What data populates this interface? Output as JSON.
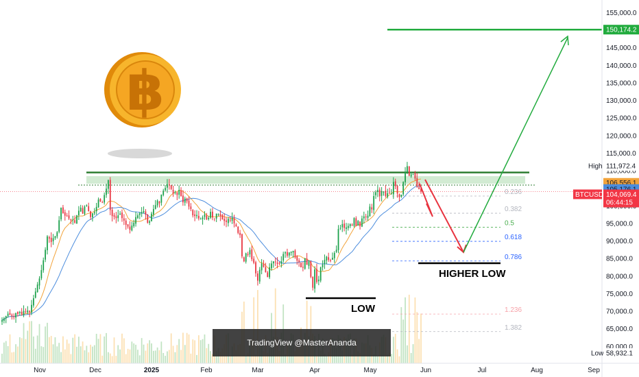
{
  "chart_data": {
    "type": "candlestick",
    "symbol": "BTCUSDT",
    "x_labels": [
      "Nov",
      "Dec",
      "2025",
      "Feb",
      "Mar",
      "Apr",
      "May",
      "Jun",
      "Jul",
      "Aug",
      "Sep"
    ],
    "y_ticks": [
      "155,000.0",
      "150,000.0",
      "145,000.0",
      "140,000.0",
      "135,000.0",
      "130,000.0",
      "125,000.0",
      "120,000.0",
      "115,000.0",
      "110,000.0",
      "105,000.0",
      "100,000.0",
      "95,000.0",
      "90,000.0",
      "85,000.0",
      "80,000.0",
      "75,000.0",
      "70,000.0",
      "65,000.0",
      "60,000.0"
    ],
    "y_tick_values": [
      155000,
      150000,
      145000,
      140000,
      135000,
      130000,
      125000,
      120000,
      115000,
      110000,
      105000,
      100000,
      95000,
      90000,
      85000,
      80000,
      75000,
      70000,
      65000,
      60000
    ],
    "ylim": [
      57000,
      158000
    ],
    "price_badges": {
      "target": {
        "label": "150,174.2",
        "value": 150174.2,
        "color": "#22ab3e"
      },
      "high": {
        "caption": "High",
        "label": "111,972.4",
        "value": 111972.4
      },
      "ma1": {
        "label": "106,556.1",
        "value": 106556.1,
        "color": "#f2a33a"
      },
      "ma2": {
        "label": "105,176.1",
        "value": 105176.1,
        "color": "#4c8ddd"
      },
      "symbol": {
        "label": "BTCUSDT",
        "color": "#f23645"
      },
      "last": {
        "label": "104,069.4",
        "value": 104069.4,
        "countdown": "06:44:15",
        "color": "#f23645"
      },
      "low": {
        "caption": "Low",
        "label": "58,932.1",
        "value": 58932.1
      }
    },
    "fib_levels": [
      {
        "label": "0.236",
        "value": 102800,
        "color": "#b2b5be"
      },
      {
        "label": "0.382",
        "value": 97900,
        "color": "#b2b5be"
      },
      {
        "label": "0.5",
        "value": 93900,
        "color": "#4caf50"
      },
      {
        "label": "0.618",
        "value": 89900,
        "color": "#2962ff"
      },
      {
        "label": "0.786",
        "value": 84300,
        "color": "#2962ff"
      },
      {
        "label": "1.236",
        "value": 69200,
        "color": "#f7a1a8"
      },
      {
        "label": "1.382",
        "value": 64200,
        "color": "#b2b5be"
      }
    ],
    "resistance_level": 109500,
    "annotations": {
      "low": "LOW",
      "higher_low": "HIGHER LOW"
    },
    "closes": [
      67500,
      68000,
      68600,
      69300,
      69000,
      68700,
      68400,
      69500,
      69200,
      69800,
      69200,
      70100,
      69900,
      70200,
      69800,
      71800,
      73700,
      75600,
      77600,
      79300,
      81700,
      84500,
      87500,
      91300,
      90700,
      89700,
      90800,
      91400,
      92500,
      95900,
      99500,
      97900,
      97200,
      97100,
      96400,
      95900,
      96100,
      95200,
      97300,
      98600,
      99500,
      97800,
      99800,
      100200,
      98500,
      96800,
      97900,
      98200,
      99700,
      101800,
      101200,
      100900,
      103100,
      104900,
      107300,
      98800,
      97100,
      96900,
      96500,
      97300,
      97800,
      96500,
      95800,
      94600,
      94100,
      93200,
      94400,
      95200,
      96800,
      97300,
      97900,
      98200,
      98500,
      97500,
      95200,
      95600,
      97800,
      99100,
      100200,
      101500,
      100700,
      103200,
      104300,
      105100,
      106200,
      105900,
      104800,
      103500,
      103900,
      103100,
      104500,
      102800,
      101000,
      102100,
      101300,
      99800,
      99100,
      97300,
      97100,
      97400,
      96400,
      96300,
      96700,
      97500,
      96200,
      96600,
      98300,
      96700,
      96400,
      97800,
      97700,
      97200,
      96100,
      95700,
      95400,
      96300,
      95900,
      96600,
      95000,
      94200,
      92300,
      91700,
      85600,
      84200,
      86500,
      86000,
      87400,
      84800,
      83800,
      80800,
      78700,
      81800,
      83600,
      82600,
      81100,
      79700,
      82500,
      83600,
      84200,
      84100,
      83500,
      83600,
      84200,
      86300,
      86800,
      85800,
      86700,
      86900,
      87200,
      85300,
      84400,
      84000,
      82500,
      82400,
      85100,
      83200,
      84100,
      79800,
      76700,
      81900,
      78300,
      79000,
      82500,
      83300,
      84600,
      85500,
      84600,
      84400,
      85200,
      86600,
      87500,
      93400,
      93700,
      94800,
      93700,
      93900,
      94300,
      94800,
      94500,
      96500,
      94300,
      95700,
      94200,
      96400,
      97000,
      96800,
      97200,
      99800,
      99000,
      102800,
      103900,
      104500,
      102700,
      104200,
      104000,
      102800,
      103600,
      103600,
      103500,
      106800,
      105600,
      103500,
      102500,
      103200,
      106800,
      109600,
      111300,
      108600,
      109000,
      109100,
      107800,
      105500,
      104800,
      104100
    ],
    "volume_scale_max": 1
  },
  "watermark": "TradingView @MasterAnanda"
}
